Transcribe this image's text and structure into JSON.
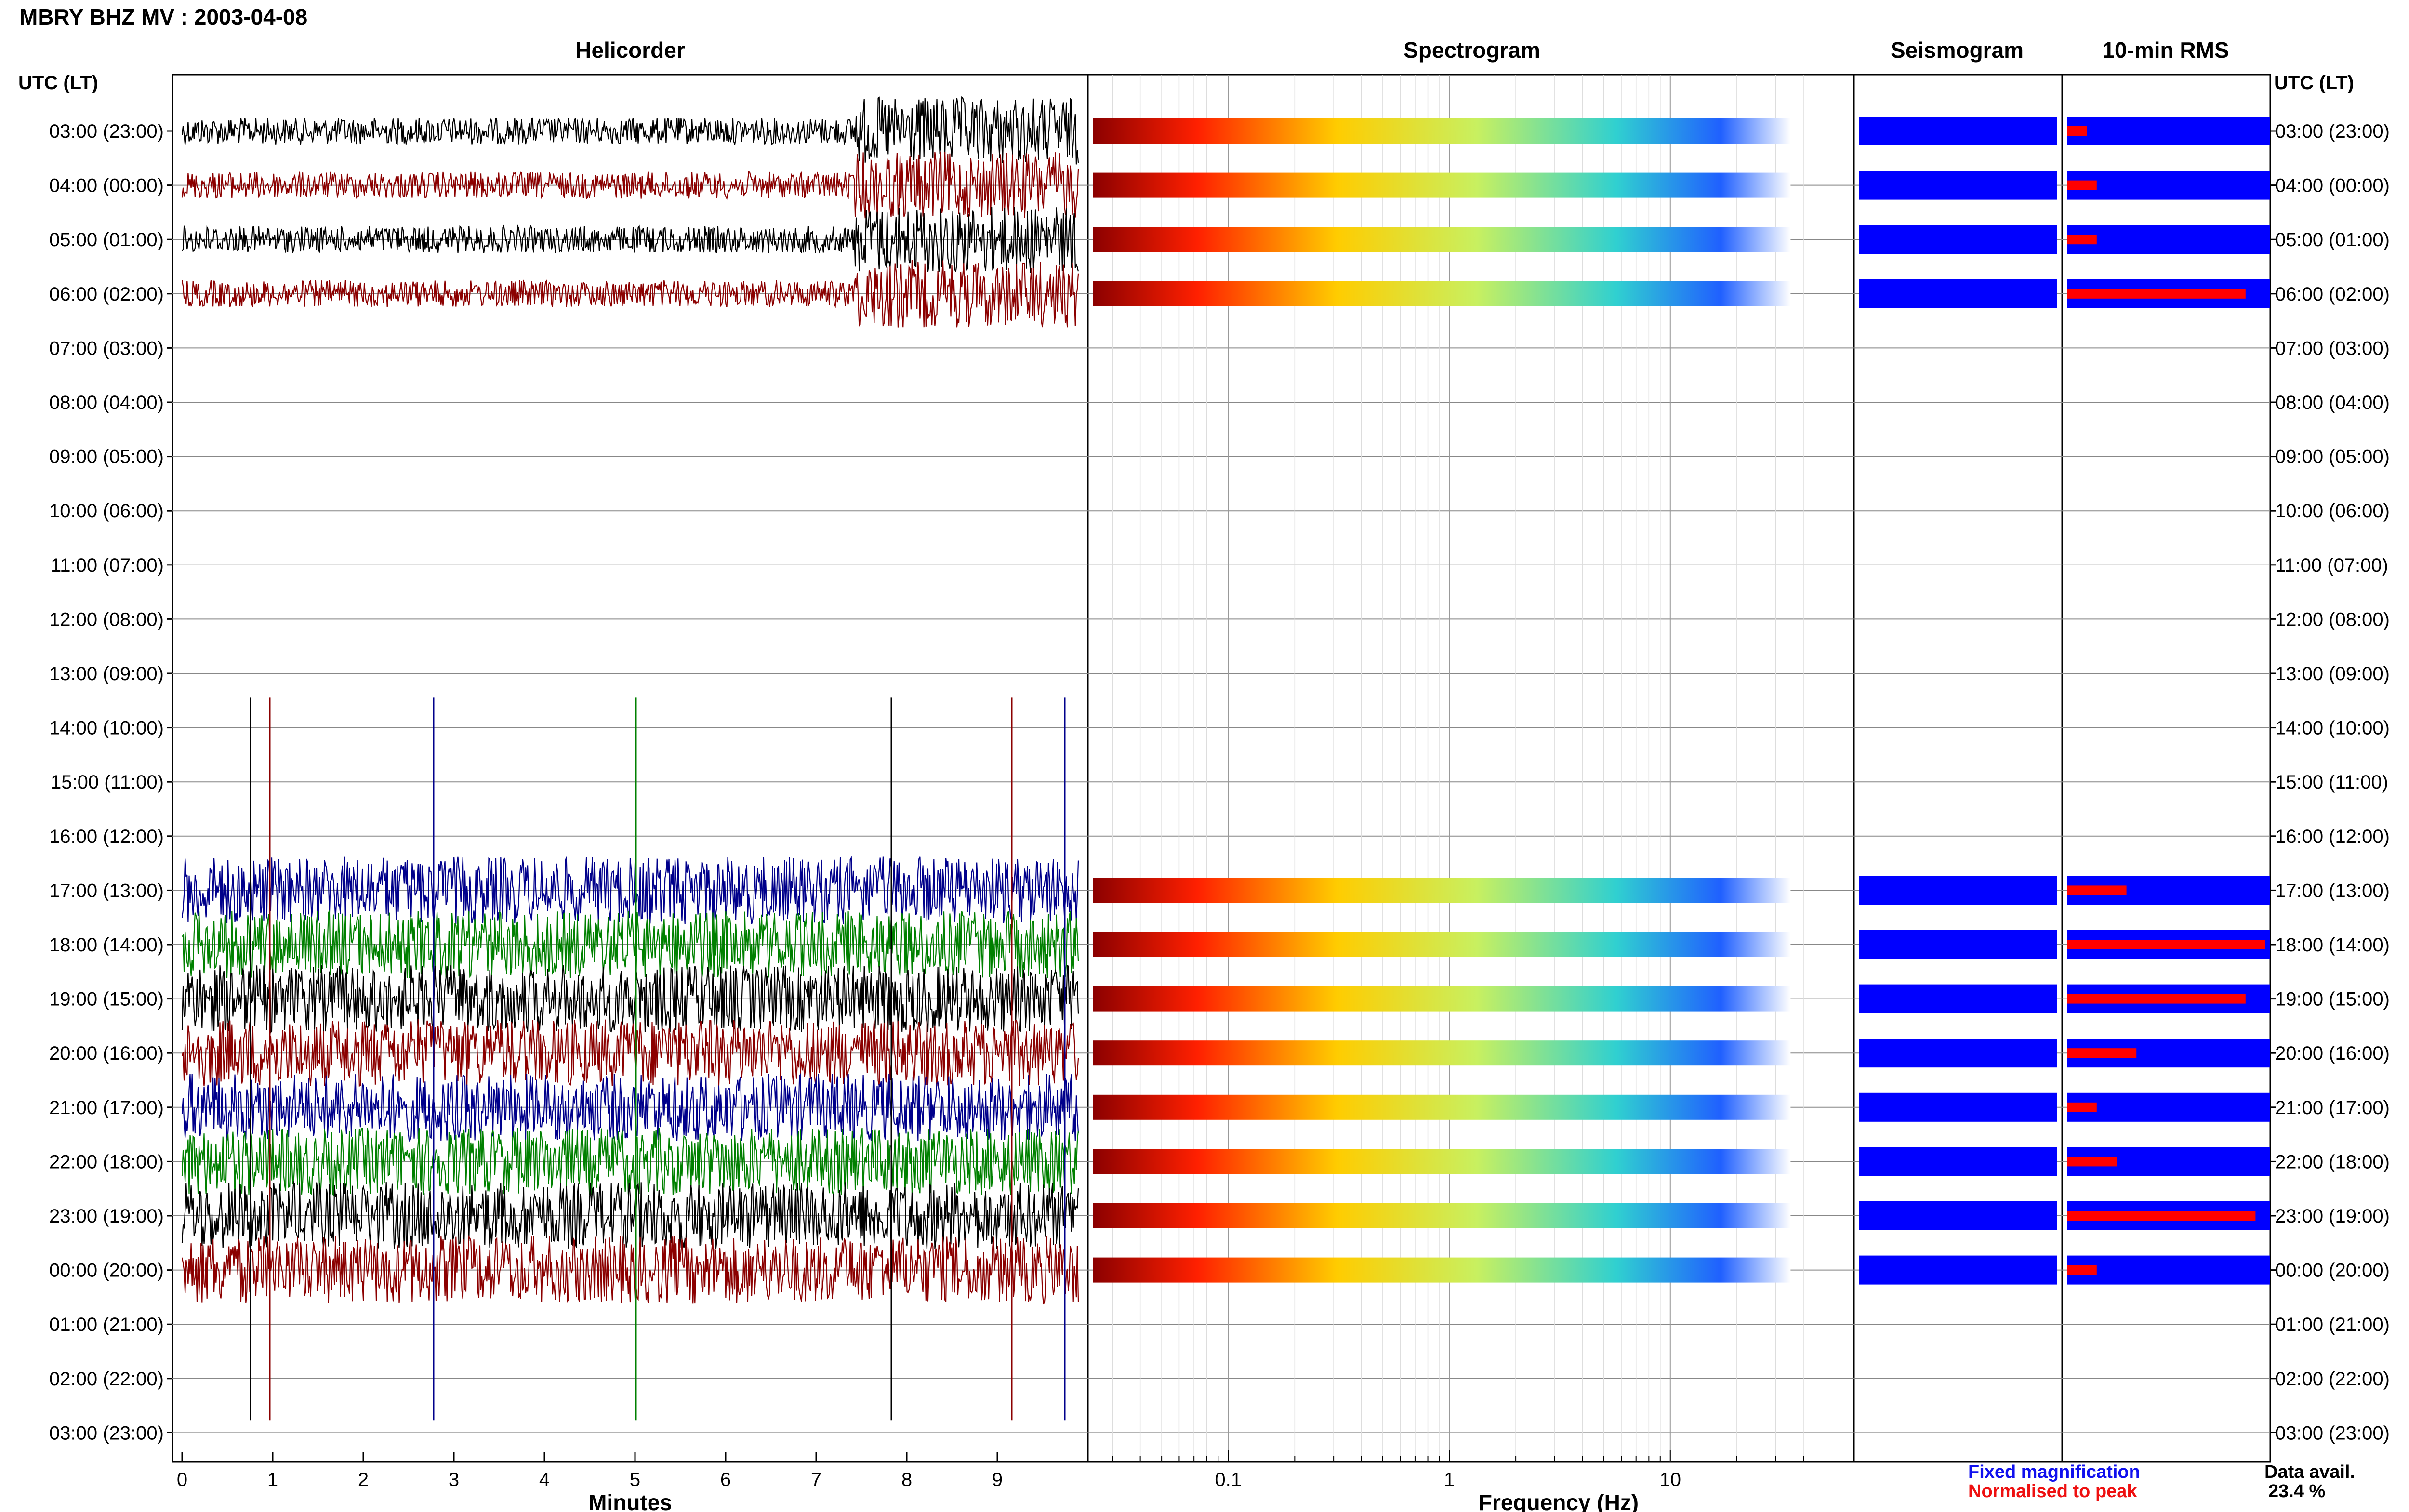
{
  "title": "MBRY BHZ MV : 2003-04-08",
  "panels": {
    "helicorder": "Helicorder",
    "spectrogram": "Spectrogram",
    "seismogram": "Seismogram",
    "rms": "10-min RMS"
  },
  "axis_time_label": "UTC (LT)",
  "time_labels": [
    "03:00 (23:00)",
    "04:00 (00:00)",
    "05:00 (01:00)",
    "06:00 (02:00)",
    "07:00 (03:00)",
    "08:00 (04:00)",
    "09:00 (05:00)",
    "10:00 (06:00)",
    "11:00 (07:00)",
    "12:00 (08:00)",
    "13:00 (09:00)",
    "14:00 (10:00)",
    "15:00 (11:00)",
    "16:00 (12:00)",
    "17:00 (13:00)",
    "18:00 (14:00)",
    "19:00 (15:00)",
    "20:00 (16:00)",
    "21:00 (17:00)",
    "22:00 (18:00)",
    "23:00 (19:00)",
    "00:00 (20:00)",
    "01:00 (21:00)",
    "02:00 (22:00)",
    "03:00 (23:00)"
  ],
  "minutes_ticks": [
    "0",
    "1",
    "2",
    "3",
    "4",
    "5",
    "6",
    "7",
    "8",
    "9"
  ],
  "minutes_label": "Minutes",
  "freq_ticks": [
    "0.1",
    "1",
    "10"
  ],
  "freq_label": "Frequency (Hz)",
  "legend": {
    "fixed": "Fixed magnification",
    "normalised": "Normalised to peak"
  },
  "data_avail": {
    "label": "Data avail.",
    "value": "23.4 %"
  },
  "colors": {
    "black": "#000000",
    "darkred": "#8b0000",
    "blue": "#00008b",
    "green": "#008000",
    "rms_blue": "#0000ff",
    "rms_red": "#ff0000"
  },
  "chart_data": {
    "type": "helicorder",
    "station": "MBRY BHZ MV",
    "date": "2003-04-08",
    "rows_utc": [
      "03:00",
      "04:00",
      "05:00",
      "06:00",
      "07:00",
      "08:00",
      "09:00",
      "10:00",
      "11:00",
      "12:00",
      "13:00",
      "14:00",
      "15:00",
      "16:00",
      "17:00",
      "18:00",
      "19:00",
      "20:00",
      "21:00",
      "22:00",
      "23:00",
      "00:00",
      "01:00",
      "02:00",
      "03:00"
    ],
    "data_present_hours": [
      "03:00",
      "04:00",
      "05:00",
      "06:00",
      "17:00",
      "18:00",
      "19:00",
      "20:00",
      "21:00",
      "22:00",
      "23:00",
      "00:00"
    ],
    "x_minutes_range": [
      0,
      10
    ],
    "frequency_range_hz": [
      0.025,
      40
    ],
    "frequency_scale": "log",
    "data_availability_percent": 23.4
  }
}
